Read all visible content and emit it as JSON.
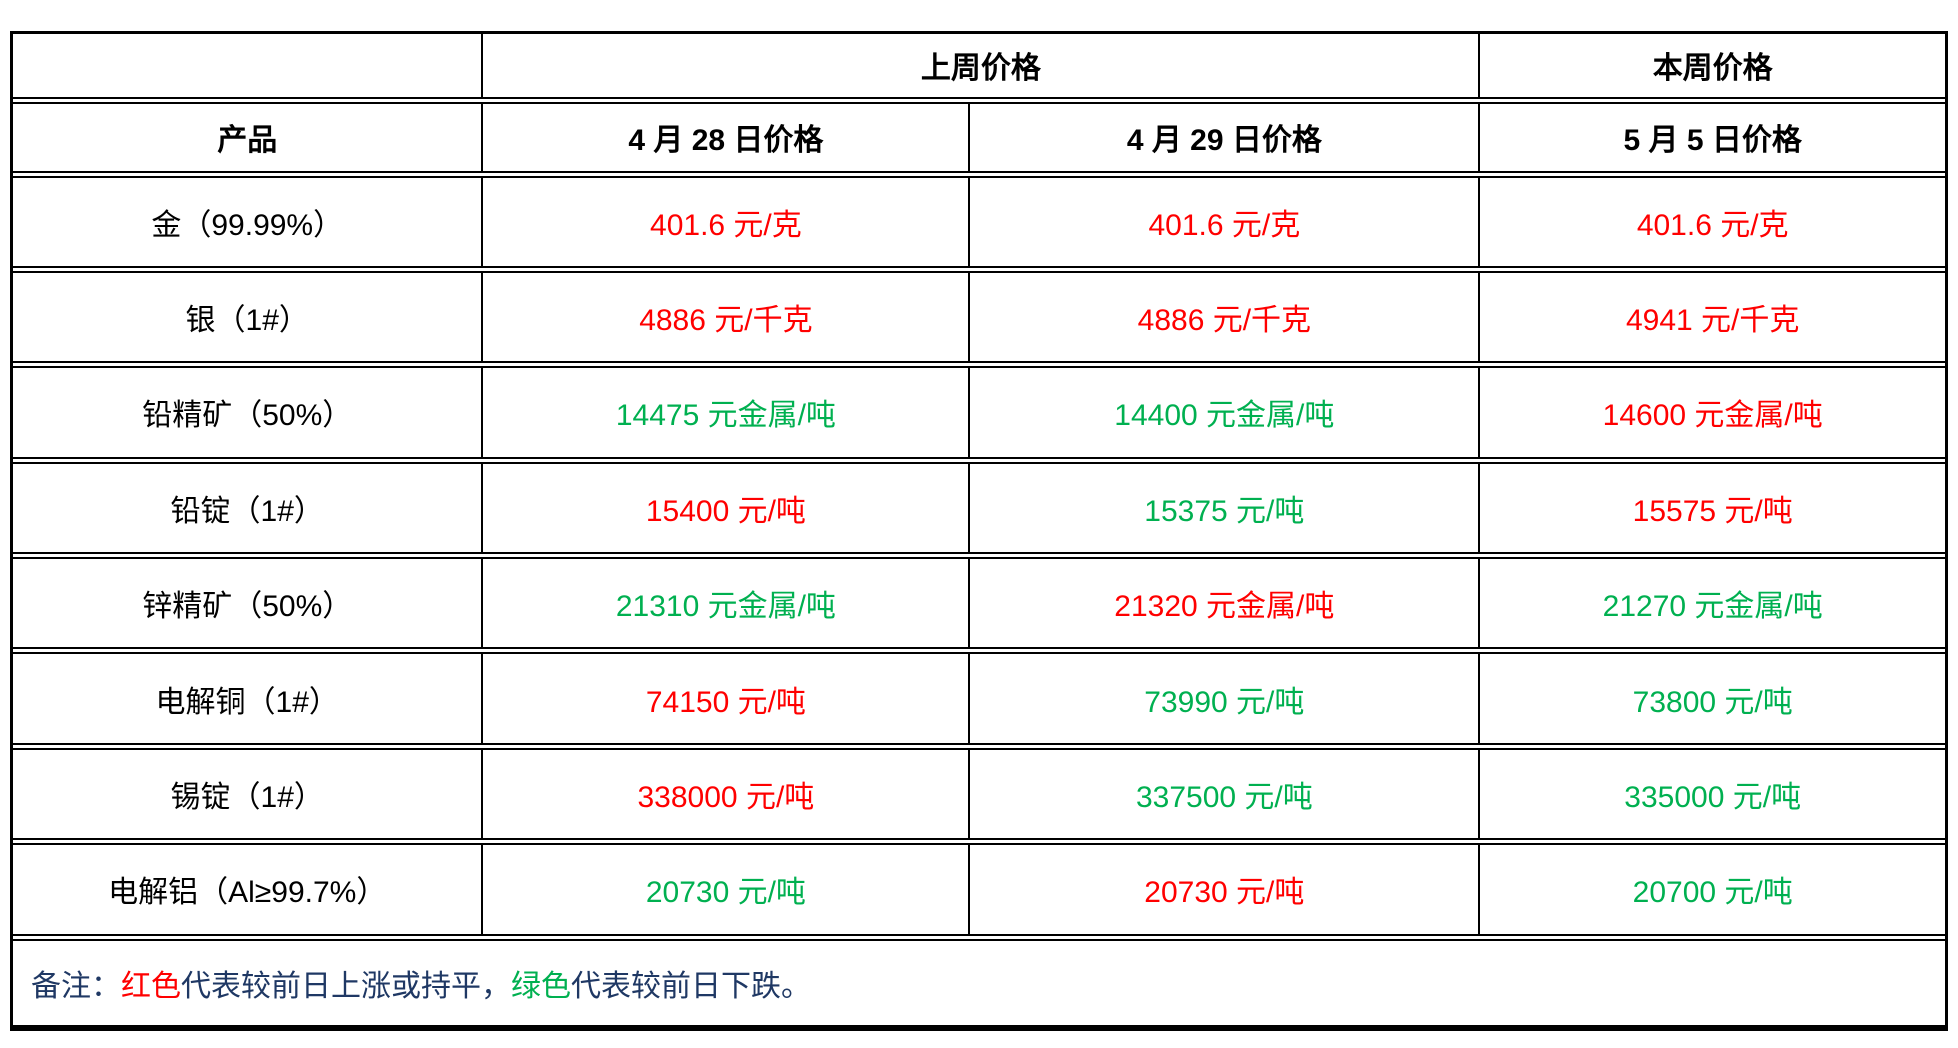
{
  "table": {
    "header_row1": {
      "corner": "",
      "last_week": "上周价格",
      "this_week": "本周价格"
    },
    "header_row2": {
      "product": "产品",
      "dates": [
        "4 月 28 日价格",
        "4 月 29 日价格",
        "5 月 5 日价格"
      ]
    },
    "colors": {
      "red": "#FF0000",
      "green": "#00B050",
      "navy": "#1F3864",
      "text": "#000000",
      "border": "#000000"
    },
    "rows": [
      {
        "product": "金（99.99%）",
        "prices": [
          {
            "text": "401.6 元/克",
            "color": "red"
          },
          {
            "text": "401.6 元/克",
            "color": "red"
          },
          {
            "text": "401.6 元/克",
            "color": "red"
          }
        ]
      },
      {
        "product": "银（1#）",
        "prices": [
          {
            "text": "4886 元/千克",
            "color": "red"
          },
          {
            "text": "4886 元/千克",
            "color": "red"
          },
          {
            "text": "4941 元/千克",
            "color": "red"
          }
        ]
      },
      {
        "product": "铅精矿（50%）",
        "prices": [
          {
            "text": "14475 元金属/吨",
            "color": "green"
          },
          {
            "text": "14400 元金属/吨",
            "color": "green"
          },
          {
            "text": "14600 元金属/吨",
            "color": "red"
          }
        ]
      },
      {
        "product": "铅锭（1#）",
        "prices": [
          {
            "text": "15400 元/吨",
            "color": "red"
          },
          {
            "text": "15375 元/吨",
            "color": "green"
          },
          {
            "text": "15575 元/吨",
            "color": "red"
          }
        ]
      },
      {
        "product": "锌精矿（50%）",
        "prices": [
          {
            "text": "21310 元金属/吨",
            "color": "green"
          },
          {
            "text": "21320 元金属/吨",
            "color": "red"
          },
          {
            "text": "21270 元金属/吨",
            "color": "green"
          }
        ]
      },
      {
        "product": "电解铜（1#）",
        "prices": [
          {
            "text": "74150 元/吨",
            "color": "red"
          },
          {
            "text": "73990 元/吨",
            "color": "green"
          },
          {
            "text": "73800 元/吨",
            "color": "green"
          }
        ]
      },
      {
        "product": "锡锭（1#）",
        "prices": [
          {
            "text": "338000 元/吨",
            "color": "red"
          },
          {
            "text": "337500 元/吨",
            "color": "green"
          },
          {
            "text": "335000 元/吨",
            "color": "green"
          }
        ]
      },
      {
        "product": "电解铝（Al≥99.7%）",
        "prices": [
          {
            "text": "20730 元/吨",
            "color": "green"
          },
          {
            "text": "20730 元/吨",
            "color": "red"
          },
          {
            "text": "20700 元/吨",
            "color": "green"
          }
        ]
      }
    ],
    "note_segments": [
      {
        "text": "备注：",
        "color": "navy"
      },
      {
        "text": "红色",
        "color": "red"
      },
      {
        "text": "代表较前日上涨或持平，",
        "color": "navy"
      },
      {
        "text": "绿色",
        "color": "green"
      },
      {
        "text": "代表较前日下跌。",
        "color": "navy"
      }
    ]
  }
}
